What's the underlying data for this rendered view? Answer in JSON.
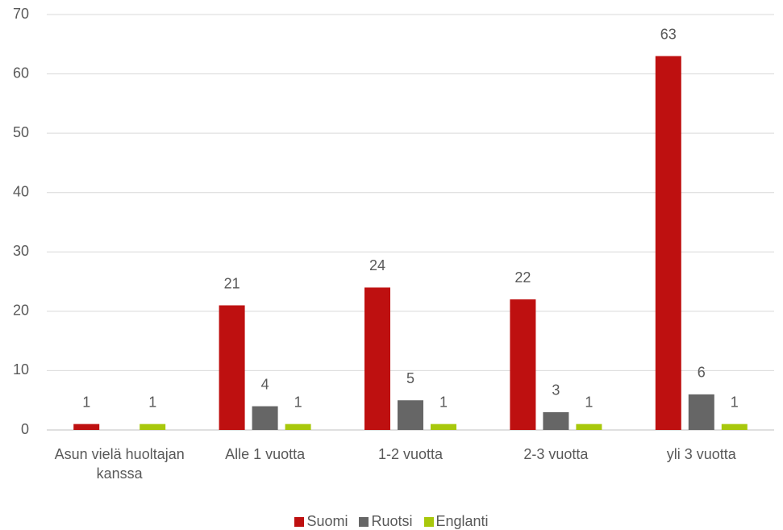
{
  "chart_data": {
    "type": "bar",
    "categories": [
      "Asun vielä huoltajan kanssa",
      "Alle 1 vuotta",
      "1-2 vuotta",
      "2-3 vuotta",
      "yli 3 vuotta"
    ],
    "series": [
      {
        "name": "Suomi",
        "color": "#be1010",
        "values": [
          1,
          21,
          24,
          22,
          63
        ]
      },
      {
        "name": "Ruotsi",
        "color": "#666666",
        "values": [
          null,
          4,
          5,
          3,
          6
        ]
      },
      {
        "name": "Englanti",
        "color": "#a8c80c",
        "values": [
          1,
          1,
          1,
          1,
          1
        ]
      }
    ],
    "ylim": [
      0,
      70
    ],
    "yticks": [
      0,
      10,
      20,
      30,
      40,
      50,
      60,
      70
    ],
    "grid": true,
    "legend": "bottom"
  }
}
